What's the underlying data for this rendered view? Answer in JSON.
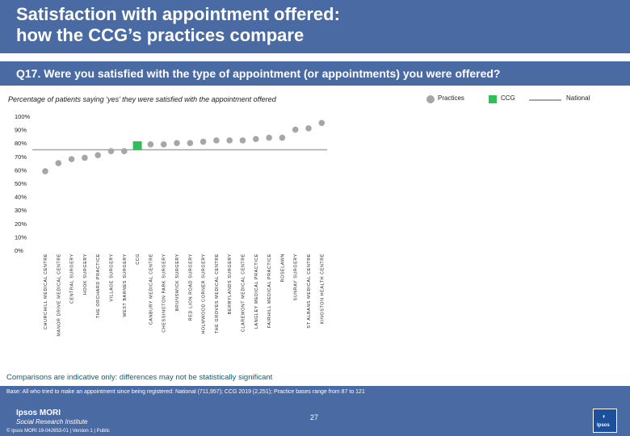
{
  "header": {
    "title_line1": "Satisfaction with appointment offered:",
    "title_line2": "how the CCG’s practices compare"
  },
  "question": "Q17. Were you satisfied with the type of appointment (or appointments) you were offered?",
  "subtitle": "Percentage of patients saying ‘yes’ they were satisfied with the appointment offered",
  "legend": {
    "practices": "Practices",
    "ccg": "CCG",
    "national": "National"
  },
  "colors": {
    "brand": "#4a6aa3",
    "practice": "#a6a6a6",
    "ccg": "#2fbf58",
    "national_line": "#a6a6a6",
    "note": "#0b5e73"
  },
  "chart_data": {
    "type": "scatter",
    "ylim": [
      0,
      100
    ],
    "yticks": [
      "0%",
      "10%",
      "20%",
      "30%",
      "40%",
      "50%",
      "60%",
      "70%",
      "80%",
      "90%",
      "100%"
    ],
    "national": 75,
    "points": [
      {
        "label": "CHURCHILL MEDICAL CENTRE",
        "value": 59,
        "kind": "practice"
      },
      {
        "label": "MANOR DRIVE MEDICAL CENTRE",
        "value": 65,
        "kind": "practice"
      },
      {
        "label": "CENTRAL SURGERY",
        "value": 68,
        "kind": "practice"
      },
      {
        "label": "HOOK SURGERY",
        "value": 69,
        "kind": "practice"
      },
      {
        "label": "THE ORCHARD PRACTICE",
        "value": 71,
        "kind": "practice"
      },
      {
        "label": "VILLAGE SURGERY",
        "value": 74,
        "kind": "practice"
      },
      {
        "label": "WEST BARNES SURGERY",
        "value": 74,
        "kind": "practice"
      },
      {
        "label": "CCG",
        "value": 78,
        "kind": "ccg"
      },
      {
        "label": "CANBURY MEDICAL CENTRE",
        "value": 79,
        "kind": "practice"
      },
      {
        "label": "CHESSINGTON PARK SURGERY",
        "value": 79,
        "kind": "practice"
      },
      {
        "label": "BRUNSWICK SURGERY",
        "value": 80,
        "kind": "practice"
      },
      {
        "label": "RED LION ROAD SURGERY",
        "value": 80,
        "kind": "practice"
      },
      {
        "label": "HOLMWOOD CORNER SURGERY",
        "value": 81,
        "kind": "practice"
      },
      {
        "label": "THE GROVES MEDICAL CENTRE",
        "value": 82,
        "kind": "practice"
      },
      {
        "label": "BERRYLANDS SURGERY",
        "value": 82,
        "kind": "practice"
      },
      {
        "label": "CLAREMONT MEDICAL CENTRE",
        "value": 82,
        "kind": "practice"
      },
      {
        "label": "LANGLEY MEDICAL PRACTICE",
        "value": 83,
        "kind": "practice"
      },
      {
        "label": "FAIRHILL MEDICAL PRACTICE",
        "value": 84,
        "kind": "practice"
      },
      {
        "label": "ROSELAWN",
        "value": 84,
        "kind": "practice"
      },
      {
        "label": "SUNRAY SURGERY",
        "value": 90,
        "kind": "practice"
      },
      {
        "label": "ST ALBANS MEDICAL CENTRE",
        "value": 91,
        "kind": "practice"
      },
      {
        "label": "KINGSTON HEALTH CENTRE",
        "value": 95,
        "kind": "practice"
      }
    ]
  },
  "note": "Comparisons are indicative only: differences may not be statistically significant",
  "footer": {
    "base": "Base: All who tried to make an appointment since being registered: National (711,957); CCG 2019 (2,251); Practice bases range from 87 to 121",
    "page": "27",
    "brand_line1": "Ipsos MORI",
    "brand_line2": "Social Research Institute",
    "copyright": "© Ipsos MORI      19-042653-01 | Version 1 | Public",
    "logo_text": "Ipsos"
  }
}
